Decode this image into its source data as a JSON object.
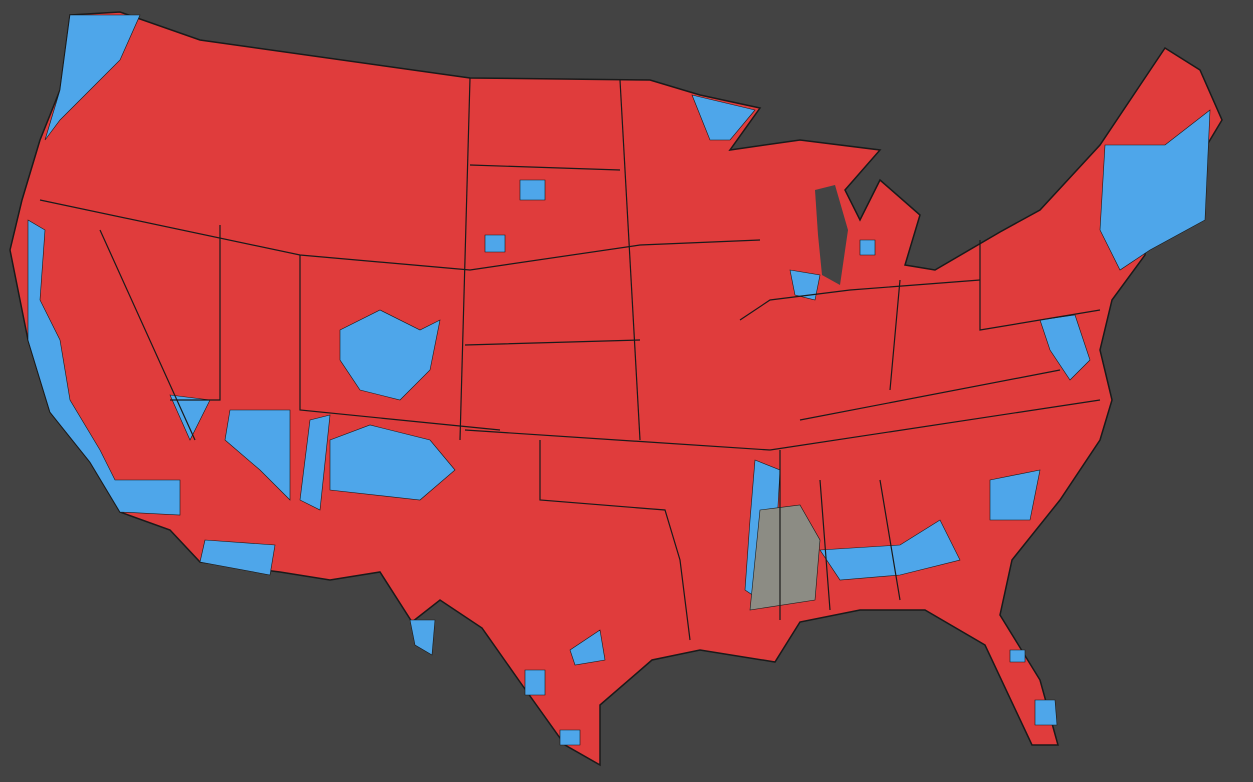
{
  "map": {
    "colors": {
      "background": "#434343",
      "republican": "#e03c3c",
      "democratic": "#4ea6ea",
      "no_data": "#8c8c84",
      "borders": "#1a1a1a"
    }
  }
}
